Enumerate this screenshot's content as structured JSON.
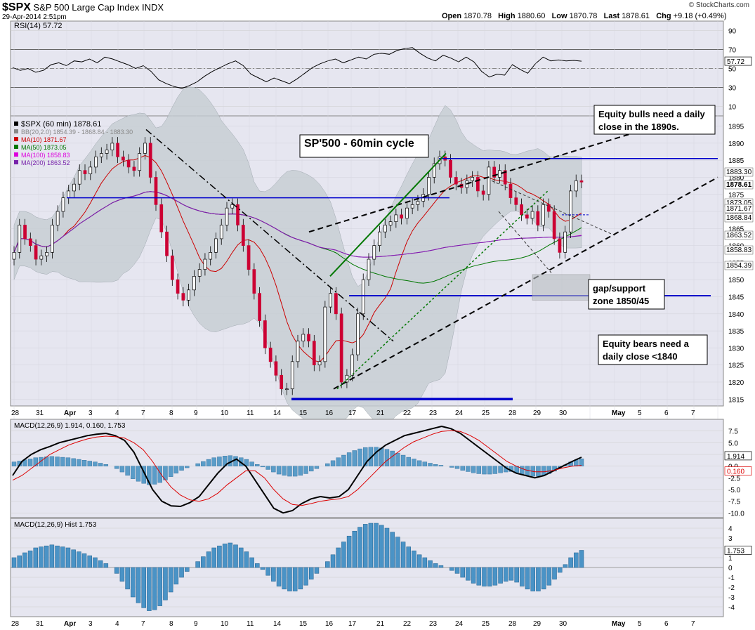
{
  "header": {
    "symbol": "$SPX",
    "name": "S&P 500 Large Cap Index",
    "exchange": "INDX",
    "timestamp": "29-Apr-2014 2:51pm",
    "copyright": "© StockCharts.com",
    "open_label": "Open",
    "open": "1870.78",
    "high_label": "High",
    "high": "1880.60",
    "low_label": "Low",
    "low": "1870.78",
    "last_label": "Last",
    "last": "1878.61",
    "chg_label": "Chg",
    "chg": "+9.18 (+0.49%)"
  },
  "chart_data": [
    {
      "type": "line",
      "panel": "rsi",
      "title": "RSI(14) 57.72",
      "ylim": [
        0,
        100
      ],
      "yticks": [
        "90",
        "70",
        "50",
        "30",
        "10"
      ],
      "current_label": "57.72",
      "values": [
        51,
        48,
        50,
        46,
        48,
        54,
        56,
        53,
        58,
        57,
        60,
        56,
        62,
        60,
        57,
        54,
        50,
        53,
        47,
        38,
        34,
        31,
        29,
        32,
        36,
        42,
        47,
        51,
        55,
        58,
        53,
        44,
        40,
        36,
        40,
        37,
        34,
        39,
        45,
        51,
        55,
        58,
        60,
        56,
        59,
        62,
        60,
        65,
        66,
        65,
        69,
        71,
        72,
        66,
        61,
        58,
        64,
        61,
        57,
        62,
        57,
        47,
        41,
        44,
        43,
        54,
        49,
        45,
        55,
        62,
        58,
        59,
        58,
        58.5,
        57.72
      ]
    },
    {
      "type": "candlestick",
      "panel": "price",
      "title": "$SPX (60 min) 1878.61",
      "ylim": [
        1813,
        1898
      ],
      "yticks": [
        "1895",
        "1890",
        "1885",
        "1880",
        "1875",
        "1870",
        "1865",
        "1860",
        "1855",
        "1850",
        "1845",
        "1840",
        "1835",
        "1830",
        "1825",
        "1820",
        "1815"
      ],
      "x_labels": [
        "28",
        "31",
        "Apr",
        "3",
        "4",
        "7",
        "8",
        "9",
        "10",
        "11",
        "14",
        "15",
        "16",
        "17",
        "21",
        "22",
        "23",
        "24",
        "25",
        "28",
        "29",
        "30",
        "May",
        "5",
        "6",
        "7"
      ],
      "legend": [
        {
          "label": "$SPX (60 min) 1878.61",
          "color": "#000000"
        },
        {
          "label": "BB(20,2.0) 1854.39 - 1868.84 - 1883.30",
          "color": "#888888"
        },
        {
          "label": "MA(10) 1871.67",
          "color": "#cc0000"
        },
        {
          "label": "MA(50) 1873.05",
          "color": "#007700"
        },
        {
          "label": "MA(100) 1858.83",
          "color": "#dd00dd"
        },
        {
          "label": "MA(200) 1863.52",
          "color": "#7722aa"
        }
      ],
      "right_labels": [
        "1883.30",
        "1878.61",
        "1873.05",
        "1871.67",
        "1868.84",
        "1863.52",
        "1858.83",
        "1854.39"
      ],
      "annotations": {
        "title_box": "SP'500 - 60min cycle",
        "bulls_line1": "Equity bulls need a daily",
        "bulls_line2": "close in the 1890s.",
        "gap_line1": "gap/support",
        "gap_line2": "zone 1850/45",
        "bears_line1": "Equity bears need a",
        "bears_line2": "daily close <1840"
      },
      "closes": [
        1858,
        1866,
        1862,
        1860,
        1856,
        1857,
        1858,
        1866,
        1870,
        1874,
        1876,
        1878,
        1882,
        1881,
        1883,
        1886,
        1887,
        1888,
        1890,
        1886,
        1885,
        1883,
        1882,
        1887,
        1890,
        1880,
        1872,
        1864,
        1857,
        1850,
        1846,
        1844,
        1847,
        1851,
        1853,
        1856,
        1858,
        1862,
        1866,
        1871,
        1872,
        1866,
        1860,
        1853,
        1846,
        1838,
        1830,
        1826,
        1822,
        1818,
        1818,
        1826,
        1832,
        1834,
        1832,
        1825,
        1826,
        1842,
        1846,
        1840,
        1820,
        1822,
        1828,
        1840,
        1850,
        1856,
        1860,
        1864,
        1866,
        1867,
        1869,
        1868,
        1871,
        1872,
        1873,
        1875,
        1880,
        1884,
        1886,
        1885,
        1880,
        1878,
        1877,
        1879,
        1880,
        1876,
        1875,
        1883,
        1880,
        1882,
        1878,
        1874,
        1872,
        1869,
        1868,
        1870,
        1866,
        1872,
        1870,
        1862,
        1858,
        1864,
        1876,
        1879,
        1878.61
      ]
    },
    {
      "type": "line",
      "panel": "macd",
      "title": "MACD(12,26,9) 1.914, 0.160, 1.753",
      "ylim": [
        -11,
        10
      ],
      "yticks": [
        "7.5",
        "5.0",
        "2.5",
        "0.0",
        "-2.5",
        "-5.0",
        "-7.5",
        "-10.0"
      ],
      "macd_label": "1.914",
      "signal_label": "0.160",
      "series": [
        {
          "name": "MACD",
          "color": "#000000",
          "values": [
            -2,
            1,
            2.5,
            3.5,
            4.2,
            5,
            5.5,
            6,
            6.5,
            6.8,
            7,
            6.5,
            5.5,
            3,
            -1,
            -5,
            -7.5,
            -8.5,
            -8.6,
            -7.8,
            -6.5,
            -4,
            -1.5,
            0.5,
            1.5,
            0,
            -3,
            -6,
            -9,
            -10,
            -9.5,
            -8,
            -7,
            -6.5,
            -6.8,
            -6.5,
            -5,
            -2,
            1,
            3,
            4.5,
            5.5,
            6.5,
            7,
            7.5,
            8,
            8.5,
            8,
            7,
            5.5,
            4,
            2.5,
            1,
            -0.5,
            -1.5,
            -2,
            -2.5,
            -2,
            -1,
            0,
            1,
            1.9
          ]
        },
        {
          "name": "Signal",
          "color": "#dd0000",
          "values": [
            -3,
            -2,
            -0.5,
            1,
            2.5,
            3.5,
            4.5,
            5.2,
            5.8,
            6.2,
            6.4,
            6.3,
            6,
            5,
            3.5,
            1,
            -2,
            -4.5,
            -6.2,
            -7.2,
            -7.5,
            -7,
            -5.8,
            -4,
            -2.5,
            -1,
            -1,
            -2.5,
            -5,
            -7,
            -8.2,
            -8.4,
            -8,
            -7.5,
            -7.2,
            -7,
            -6.5,
            -5,
            -3,
            -1,
            1,
            2.5,
            4,
            5.2,
            6,
            6.8,
            7.4,
            7.6,
            7.4,
            6.6,
            5.5,
            4,
            2.5,
            1,
            0,
            -0.8,
            -1.2,
            -1.2,
            -0.9,
            -0.4,
            0,
            0.16
          ]
        }
      ]
    },
    {
      "type": "bar",
      "panel": "hist",
      "title": "MACD(12,26,9) Hist 1.753",
      "ylim": [
        -5,
        5
      ],
      "yticks": [
        "4",
        "3",
        "2",
        "1",
        "0",
        "-1",
        "-2",
        "-3",
        "-4"
      ],
      "current_label": "1.753",
      "values": [
        1,
        1.2,
        1.5,
        1.7,
        2,
        2.1,
        2.2,
        2.3,
        2.2,
        2.1,
        2,
        1.8,
        1.6,
        1.4,
        1.2,
        1,
        0.7,
        0.4,
        0,
        -0.6,
        -1.4,
        -2.2,
        -3,
        -3.6,
        -4.1,
        -4.4,
        -4.3,
        -3.9,
        -3.3,
        -2.5,
        -1.7,
        -1,
        -0.4,
        0,
        0.6,
        1.1,
        1.6,
        2,
        2.2,
        2.4,
        2.5,
        2.3,
        2,
        1.6,
        1,
        0.4,
        -0.2,
        -0.8,
        -1.4,
        -1.9,
        -2.2,
        -2.4,
        -2.4,
        -2.2,
        -1.8,
        -1.2,
        -0.6,
        0,
        0.6,
        1.3,
        2,
        2.6,
        3.2,
        3.7,
        4.1,
        4.4,
        4.5,
        4.5,
        4.3,
        4,
        3.6,
        3.1,
        2.6,
        2.1,
        1.7,
        1.3,
        1,
        0.7,
        0.4,
        0.2,
        0,
        -0.3,
        -0.6,
        -1,
        -1.3,
        -1.6,
        -1.8,
        -1.9,
        -1.9,
        -1.8,
        -1.6,
        -1.4,
        -1.3,
        -1.5,
        -1.9,
        -2.2,
        -2.4,
        -2.4,
        -2.2,
        -1.8,
        -1.2,
        -0.5,
        0.3,
        1,
        1.5,
        1.75
      ]
    }
  ]
}
